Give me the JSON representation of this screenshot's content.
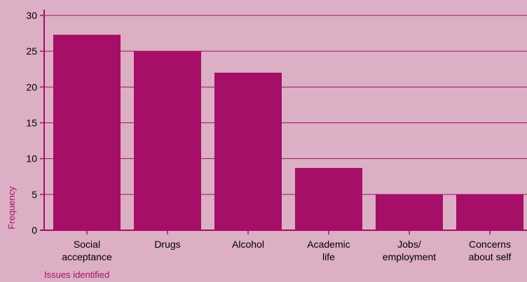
{
  "chart_data": {
    "type": "bar",
    "categories": [
      [
        "Social",
        "acceptance"
      ],
      [
        "Drugs"
      ],
      [
        "Alcohol"
      ],
      [
        "Academic",
        "life"
      ],
      [
        "Jobs/",
        "employment"
      ],
      [
        "Concerns",
        "about self"
      ]
    ],
    "values": [
      27.3,
      25,
      22,
      8.7,
      5,
      5
    ],
    "xlabel": "Issues identified",
    "ylabel": "Frequency",
    "ylim": [
      0,
      30
    ],
    "yticks": [
      "0",
      "5",
      "10",
      "15",
      "20",
      "25",
      "30"
    ],
    "grid": true,
    "colors": {
      "background": "#dcafc4",
      "bar": "#a50f67",
      "axis": "#a50f67",
      "grid": "#a50f67",
      "axis_title": "#a3106a"
    }
  }
}
